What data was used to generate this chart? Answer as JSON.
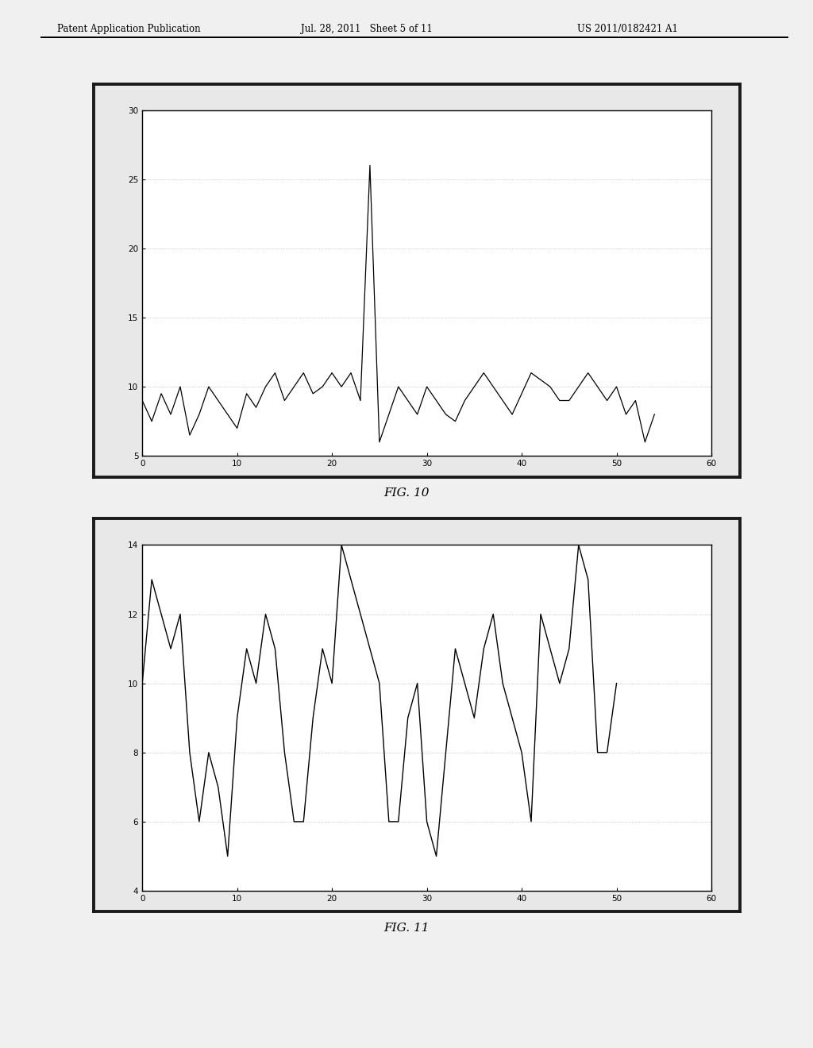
{
  "header_left": "Patent Application Publication",
  "header_mid": "Jul. 28, 2011   Sheet 5 of 11",
  "header_right": "US 2011/0182421 A1",
  "fig10_caption": "FIG. 10",
  "fig11_caption": "FIG. 11",
  "fig10_xlim": [
    0,
    60
  ],
  "fig10_ylim": [
    5,
    30
  ],
  "fig10_xticks": [
    0,
    10,
    20,
    30,
    40,
    50,
    60
  ],
  "fig10_yticks": [
    5,
    10,
    15,
    20,
    25,
    30
  ],
  "fig11_xlim": [
    0,
    60
  ],
  "fig11_ylim": [
    4,
    14
  ],
  "fig11_xticks": [
    0,
    10,
    20,
    30,
    40,
    50,
    60
  ],
  "fig11_yticks": [
    4,
    6,
    8,
    10,
    12,
    14
  ],
  "background_color": "#f0f0f0",
  "plot_bg_color": "#ffffff",
  "line_color": "#000000",
  "fig10_x": [
    0,
    1,
    2,
    3,
    4,
    5,
    6,
    7,
    8,
    9,
    10,
    11,
    12,
    13,
    14,
    15,
    16,
    17,
    18,
    19,
    20,
    21,
    22,
    23,
    24,
    25,
    26,
    27,
    28,
    29,
    30,
    31,
    32,
    33,
    34,
    35,
    36,
    37,
    38,
    39,
    40,
    41,
    42,
    43,
    44,
    45,
    46,
    47,
    48,
    49,
    50,
    51,
    52,
    53,
    54
  ],
  "fig10_y": [
    9,
    7.5,
    9.5,
    8,
    10,
    6.5,
    8,
    10,
    9,
    8,
    7,
    9.5,
    8.5,
    10,
    11,
    9,
    10,
    11,
    9.5,
    10,
    11,
    10,
    11,
    9,
    26,
    6,
    8,
    10,
    9,
    8,
    10,
    9,
    8,
    7.5,
    9,
    10,
    11,
    10,
    9,
    8,
    9.5,
    11,
    10.5,
    10,
    9,
    9,
    10,
    11,
    10,
    9,
    10,
    8,
    9,
    6,
    8
  ],
  "fig11_x": [
    0,
    1,
    2,
    3,
    4,
    5,
    6,
    7,
    8,
    9,
    10,
    11,
    12,
    13,
    14,
    15,
    16,
    17,
    18,
    19,
    20,
    21,
    22,
    23,
    24,
    25,
    26,
    27,
    28,
    29,
    30,
    31,
    32,
    33,
    34,
    35,
    36,
    37,
    38,
    39,
    40,
    41,
    42,
    43,
    44,
    45,
    46,
    47,
    48,
    49,
    50
  ],
  "fig11_y": [
    10,
    13,
    12,
    11,
    12,
    8,
    6,
    8,
    7,
    5,
    9,
    11,
    10,
    12,
    11,
    8,
    6,
    6,
    9,
    11,
    10,
    14,
    13,
    12,
    11,
    10,
    6,
    6,
    9,
    10,
    6,
    5,
    8,
    11,
    10,
    9,
    11,
    12,
    10,
    9,
    8,
    6,
    12,
    11,
    10,
    11,
    14,
    13,
    8,
    8,
    10
  ]
}
